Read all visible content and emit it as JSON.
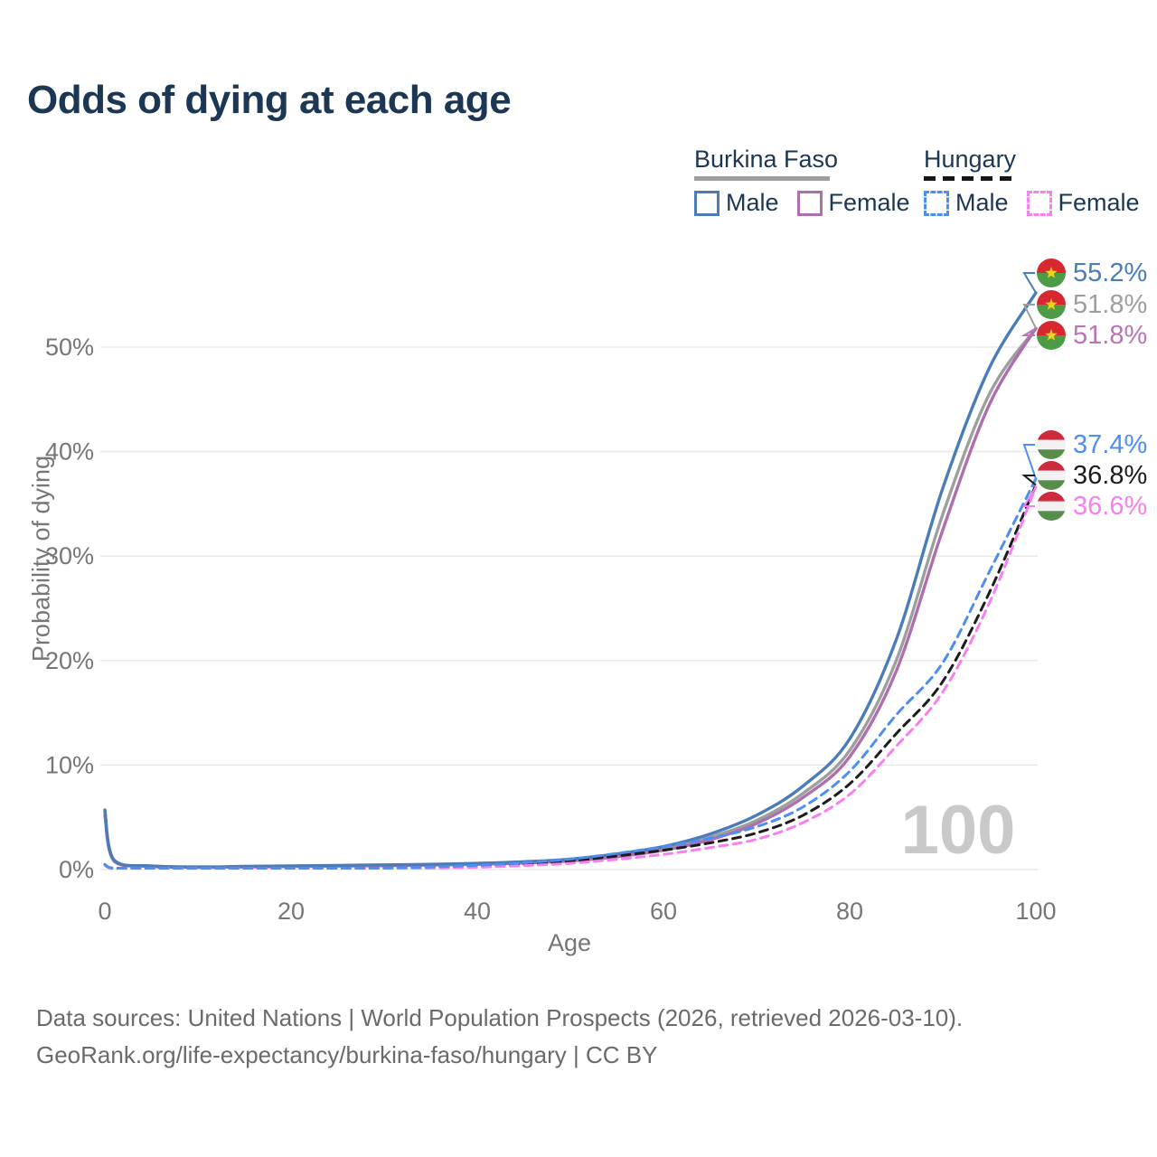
{
  "title": "Odds of dying at each age",
  "watermark": {
    "age_label": "100"
  },
  "legend": {
    "groups": [
      {
        "label": "Burkina Faso",
        "line_style": "solid",
        "line_color": "#9e9e9e",
        "underline_width": 150,
        "items": [
          {
            "label": "Male",
            "color": "#4a7cb8",
            "dashed": false
          },
          {
            "label": "Female",
            "color": "#ae6fae",
            "dashed": false
          }
        ]
      },
      {
        "label": "Hungary",
        "line_style": "dashed",
        "line_color": "#161616",
        "underline_width": 100,
        "items": [
          {
            "label": "Male",
            "color": "#4d8ef2",
            "dashed": true
          },
          {
            "label": "Female",
            "color": "#f97ef0",
            "dashed": true
          }
        ]
      }
    ]
  },
  "footer": {
    "line1": "Data sources: United Nations | World Population Prospects (2026, retrieved 2026-03-10).",
    "line2": "GeoRank.org/life-expectancy/burkina-faso/hungary | CC BY"
  },
  "flags": {
    "burkina_faso": {
      "red": "#d7282f",
      "green": "#4e9b47",
      "star": "#f5d018"
    },
    "hungary": {
      "red": "#cd2a3e",
      "white": "#f2f2f2",
      "green": "#568e49"
    }
  },
  "chart_data": {
    "type": "line",
    "title": "Odds of dying at each age",
    "xlabel": "Age",
    "ylabel": "Probability of dying",
    "xlim": [
      0,
      100
    ],
    "ylim": [
      0,
      57
    ],
    "grid": "horizontal",
    "legend_position": "top-right",
    "unit": "percent",
    "x_ticks": [
      {
        "value": 0,
        "label": "0"
      },
      {
        "value": 20,
        "label": "20"
      },
      {
        "value": 40,
        "label": "40"
      },
      {
        "value": 60,
        "label": "60"
      },
      {
        "value": 80,
        "label": "80"
      },
      {
        "value": 100,
        "label": "100"
      }
    ],
    "y_ticks": [
      {
        "value": 0,
        "label": "0%"
      },
      {
        "value": 10,
        "label": "10%"
      },
      {
        "value": 20,
        "label": "20%"
      },
      {
        "value": 30,
        "label": "30%"
      },
      {
        "value": 40,
        "label": "40%"
      },
      {
        "value": 50,
        "label": "50%"
      }
    ],
    "x": [
      0,
      1,
      5,
      10,
      15,
      20,
      25,
      30,
      35,
      40,
      45,
      50,
      55,
      60,
      65,
      70,
      75,
      80,
      85,
      90,
      95,
      100
    ],
    "series": [
      {
        "name": "Burkina Faso — Male",
        "country": "Burkina Faso",
        "sex": "Male",
        "color": "#4a7cb8",
        "label_color": "#4a7cb8",
        "dashed": false,
        "flag": "burkina_faso",
        "end_label": "55.2%",
        "values": [
          5.7,
          0.9,
          0.35,
          0.25,
          0.3,
          0.35,
          0.4,
          0.45,
          0.5,
          0.6,
          0.75,
          1.0,
          1.5,
          2.2,
          3.4,
          5.2,
          8.0,
          12.5,
          22.0,
          36.5,
          48.0,
          55.2
        ]
      },
      {
        "name": "Burkina Faso — Both sexes",
        "country": "Burkina Faso",
        "sex": "Both",
        "color": "#9e9e9e",
        "label_color": "#9e9e9e",
        "dashed": false,
        "flag": "burkina_faso",
        "end_label": "51.8%",
        "values": [
          5.5,
          0.85,
          0.33,
          0.23,
          0.27,
          0.32,
          0.36,
          0.41,
          0.46,
          0.55,
          0.68,
          0.9,
          1.35,
          2.0,
          3.1,
          4.7,
          7.3,
          11.4,
          20.0,
          34.0,
          45.5,
          51.8
        ]
      },
      {
        "name": "Burkina Faso — Female",
        "country": "Burkina Faso",
        "sex": "Female",
        "color": "#ae6fae",
        "label_color": "#bc72b6",
        "dashed": false,
        "flag": "burkina_faso",
        "end_label": "51.8%",
        "values": [
          5.2,
          0.8,
          0.3,
          0.22,
          0.25,
          0.29,
          0.33,
          0.37,
          0.42,
          0.5,
          0.62,
          0.82,
          1.22,
          1.85,
          2.85,
          4.4,
          6.9,
          10.8,
          19.0,
          32.5,
          44.5,
          51.8
        ]
      },
      {
        "name": "Hungary — Male",
        "country": "Hungary",
        "sex": "Male",
        "color": "#4d8ef2",
        "label_color": "#4d8ef2",
        "dashed": true,
        "flag": "hungary",
        "end_label": "37.4%",
        "values": [
          0.5,
          0.05,
          0.02,
          0.02,
          0.06,
          0.09,
          0.12,
          0.15,
          0.25,
          0.4,
          0.65,
          1.0,
          1.55,
          2.2,
          3.0,
          4.1,
          6.0,
          9.4,
          14.8,
          19.8,
          28.5,
          37.4
        ]
      },
      {
        "name": "Hungary — Both sexes",
        "country": "Hungary",
        "sex": "Both",
        "color": "#1c1c1c",
        "label_color": "#1c1c1c",
        "dashed": true,
        "flag": "hungary",
        "end_label": "36.8%",
        "values": [
          0.45,
          0.045,
          0.018,
          0.018,
          0.05,
          0.07,
          0.1,
          0.13,
          0.2,
          0.32,
          0.52,
          0.82,
          1.3,
          1.85,
          2.55,
          3.5,
          5.2,
          8.2,
          13.0,
          18.0,
          26.5,
          36.8
        ]
      },
      {
        "name": "Hungary — Female",
        "country": "Hungary",
        "sex": "Female",
        "color": "#f97ef0",
        "label_color": "#f97ef0",
        "dashed": true,
        "flag": "hungary",
        "end_label": "36.6%",
        "values": [
          0.4,
          0.04,
          0.015,
          0.015,
          0.04,
          0.05,
          0.06,
          0.08,
          0.13,
          0.22,
          0.38,
          0.6,
          0.98,
          1.45,
          2.1,
          2.9,
          4.5,
          7.2,
          11.8,
          17.0,
          25.5,
          36.6
        ]
      }
    ]
  }
}
